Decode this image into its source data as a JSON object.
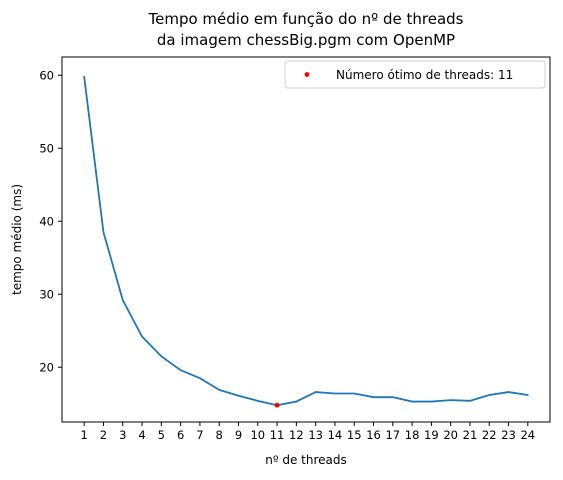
{
  "chart_data": {
    "type": "line",
    "title": [
      "Tempo médio em função do nº de threads",
      "da imagem chessBig.pgm com OpenMP"
    ],
    "xlabel": "nº de threads",
    "ylabel": "tempo médio (ms)",
    "x": [
      1,
      2,
      3,
      4,
      5,
      6,
      7,
      8,
      9,
      10,
      11,
      12,
      13,
      14,
      15,
      16,
      17,
      18,
      19,
      20,
      21,
      22,
      23,
      24
    ],
    "series": [
      {
        "color": "#1f77b4",
        "values": [
          59.8,
          38.5,
          29.2,
          24.2,
          21.5,
          19.6,
          18.5,
          16.9,
          16.1,
          15.4,
          14.8,
          15.3,
          16.6,
          16.4,
          16.4,
          15.9,
          15.9,
          15.3,
          15.3,
          15.5,
          15.4,
          16.2,
          16.6,
          16.2
        ]
      }
    ],
    "highlight": {
      "x": 11,
      "y": 14.8,
      "color": "#ff0000",
      "label": "Número ótimo de threads: 11"
    },
    "xticks": [
      "1",
      "2",
      "3",
      "4",
      "5",
      "6",
      "7",
      "8",
      "9",
      "10",
      "11",
      "12",
      "13",
      "14",
      "15",
      "16",
      "17",
      "18",
      "19",
      "20",
      "21",
      "22",
      "23",
      "24"
    ],
    "yticks": [
      20,
      30,
      40,
      50,
      60
    ],
    "xlim": [
      -0.15,
      25.15
    ],
    "ylim": [
      12.5,
      62.5
    ],
    "grid": false,
    "legend_position": "top-right"
  }
}
